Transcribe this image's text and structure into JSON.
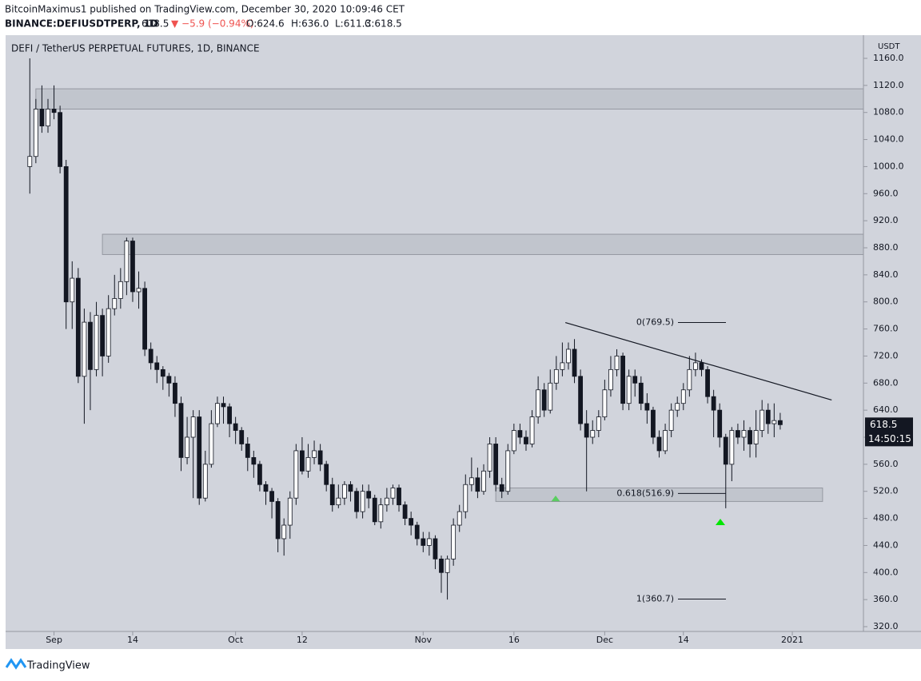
{
  "header": {
    "publisher": "BitcoinMaximus1 published on TradingView.com, December 30, 2020 10:09:46 CET",
    "symbol": "BINANCE:DEFIUSDTPERP, 1D",
    "last": "618.5",
    "change": "▼ −5.9 (−0.94%)",
    "o": "O:624.6",
    "h": "H:636.0",
    "l": "L:611.3",
    "c": "C:618.5"
  },
  "footer": {
    "brand": "TradingView"
  },
  "chart_data": {
    "type": "candlestick",
    "legend_title": "DEFI / TetherUS PERPETUAL FUTURES, 1D, BINANCE",
    "y_unit": "USDT",
    "countdown": "14:50:15",
    "xlim": [
      -4,
      147
    ],
    "xticks": [
      {
        "value": 4,
        "label": "Sep"
      },
      {
        "value": 17,
        "label": "14"
      },
      {
        "value": 34,
        "label": "Oct"
      },
      {
        "value": 45,
        "label": "12"
      },
      {
        "value": 65,
        "label": "Nov"
      },
      {
        "value": 80,
        "label": "16"
      },
      {
        "value": 95,
        "label": "Dec"
      },
      {
        "value": 108,
        "label": "14"
      },
      {
        "value": 126,
        "label": "2021"
      }
    ],
    "ylim": [
      320,
      1160
    ],
    "yticks": [
      {
        "value": 320,
        "label": "320.0"
      },
      {
        "value": 360,
        "label": "360.0"
      },
      {
        "value": 400,
        "label": "400.0"
      },
      {
        "value": 440,
        "label": "440.0"
      },
      {
        "value": 480,
        "label": "480.0"
      },
      {
        "value": 520,
        "label": "520.0"
      },
      {
        "value": 560,
        "label": "560.0"
      },
      {
        "value": 600,
        "label": "600.0"
      },
      {
        "value": 640,
        "label": "640.0"
      },
      {
        "value": 680,
        "label": "680.0"
      },
      {
        "value": 720,
        "label": "720.0"
      },
      {
        "value": 760,
        "label": "760.0"
      },
      {
        "value": 800,
        "label": "800.0"
      },
      {
        "value": 840,
        "label": "840.0"
      },
      {
        "value": 880,
        "label": "880.0"
      },
      {
        "value": 920,
        "label": "920.0"
      },
      {
        "value": 960,
        "label": "960.0"
      },
      {
        "value": 1000,
        "label": "1000.0"
      },
      {
        "value": 1040,
        "label": "1040.0"
      },
      {
        "value": 1080,
        "label": "1080.0"
      },
      {
        "value": 1120,
        "label": "1120.0"
      },
      {
        "value": 1160,
        "label": "1160.0"
      }
    ],
    "up_color": "#ffffff",
    "down_color": "#131722",
    "zones": [
      {
        "from": 1085,
        "to": 1115,
        "start": 1
      },
      {
        "from": 870,
        "to": 900,
        "start": 12
      },
      {
        "from": 505,
        "to": 525,
        "start": 77
      }
    ],
    "fib_levels": [
      {
        "value": 769.5,
        "label": "0(769.5)"
      },
      {
        "value": 516.9,
        "label": "0.618(516.9)"
      },
      {
        "value": 360.7,
        "label": "1(360.7)"
      }
    ],
    "trendline": {
      "x": [
        88.5,
        132.5
      ],
      "y": [
        769.5,
        655
      ]
    },
    "series": [
      {
        "name": "DEFIUSDTPERP",
        "open": [
          1000,
          1015,
          1085,
          1060,
          1085,
          1080,
          1000,
          800,
          835,
          690,
          770,
          700,
          780,
          720,
          790,
          805,
          830,
          890,
          815,
          820,
          730,
          710,
          700,
          690,
          680,
          650,
          570,
          600,
          630,
          510,
          560,
          620,
          650,
          645,
          620,
          610,
          590,
          570,
          560,
          530,
          520,
          505,
          450,
          470,
          510,
          580,
          550,
          570,
          580,
          560,
          530,
          500,
          510,
          530,
          520,
          490,
          520,
          510,
          475,
          500,
          510,
          525,
          500,
          480,
          470,
          450,
          440,
          450,
          420,
          400,
          420,
          470,
          490,
          530,
          540,
          520,
          550,
          590,
          530,
          520,
          580,
          610,
          600,
          590,
          630,
          670,
          640,
          680,
          700,
          710,
          730,
          690,
          620,
          600,
          610,
          630,
          670,
          700,
          720,
          650,
          690,
          680,
          650,
          640,
          600,
          580,
          610,
          640,
          650,
          670,
          700,
          710,
          700,
          660,
          640,
          600,
          560,
          610,
          600,
          610,
          590,
          610,
          640,
          620,
          624.6
        ],
        "high": [
          1160,
          1100,
          1120,
          1100,
          1120,
          1090,
          1010,
          860,
          850,
          790,
          785,
          800,
          790,
          810,
          840,
          850,
          895,
          895,
          845,
          830,
          740,
          720,
          705,
          695,
          690,
          660,
          630,
          640,
          640,
          580,
          640,
          660,
          660,
          650,
          630,
          615,
          600,
          580,
          565,
          535,
          525,
          510,
          480,
          520,
          590,
          600,
          590,
          595,
          590,
          565,
          540,
          530,
          535,
          535,
          525,
          530,
          530,
          515,
          510,
          525,
          530,
          530,
          505,
          490,
          475,
          460,
          460,
          455,
          425,
          425,
          480,
          500,
          545,
          570,
          555,
          560,
          600,
          600,
          540,
          590,
          620,
          620,
          610,
          640,
          690,
          680,
          700,
          720,
          740,
          740,
          745,
          700,
          640,
          625,
          640,
          685,
          720,
          730,
          725,
          700,
          700,
          690,
          665,
          645,
          610,
          620,
          650,
          660,
          680,
          720,
          725,
          715,
          705,
          670,
          650,
          605,
          615,
          620,
          625,
          615,
          640,
          655,
          650,
          650,
          636
        ],
        "low": [
          960,
          1005,
          1050,
          1050,
          1070,
          990,
          760,
          760,
          680,
          620,
          640,
          690,
          690,
          710,
          780,
          790,
          810,
          800,
          790,
          720,
          700,
          680,
          670,
          660,
          630,
          550,
          560,
          510,
          500,
          505,
          555,
          615,
          620,
          600,
          590,
          580,
          550,
          540,
          520,
          500,
          480,
          430,
          425,
          450,
          500,
          545,
          540,
          560,
          550,
          520,
          490,
          495,
          500,
          505,
          480,
          480,
          495,
          470,
          465,
          490,
          500,
          490,
          470,
          455,
          440,
          430,
          425,
          405,
          370,
          360,
          410,
          460,
          480,
          520,
          510,
          515,
          540,
          520,
          510,
          515,
          575,
          590,
          580,
          585,
          620,
          630,
          635,
          670,
          690,
          700,
          680,
          610,
          520,
          590,
          600,
          625,
          660,
          690,
          640,
          640,
          660,
          640,
          620,
          590,
          570,
          575,
          600,
          630,
          640,
          660,
          690,
          690,
          650,
          600,
          585,
          495,
          535,
          590,
          580,
          570,
          570,
          600,
          605,
          600,
          611.3
        ],
        "close": [
          1015,
          1085,
          1060,
          1085,
          1080,
          1000,
          800,
          835,
          690,
          770,
          700,
          780,
          720,
          790,
          805,
          830,
          890,
          815,
          820,
          730,
          710,
          700,
          690,
          680,
          650,
          570,
          600,
          630,
          510,
          560,
          620,
          650,
          645,
          620,
          610,
          590,
          570,
          560,
          530,
          520,
          505,
          450,
          470,
          510,
          580,
          550,
          570,
          580,
          560,
          530,
          500,
          510,
          530,
          520,
          490,
          520,
          510,
          475,
          500,
          510,
          525,
          500,
          480,
          470,
          450,
          440,
          450,
          420,
          400,
          420,
          470,
          490,
          530,
          540,
          520,
          550,
          590,
          530,
          520,
          580,
          610,
          600,
          590,
          630,
          670,
          640,
          680,
          700,
          710,
          730,
          690,
          620,
          600,
          610,
          630,
          670,
          700,
          720,
          650,
          690,
          680,
          650,
          640,
          600,
          580,
          610,
          640,
          650,
          670,
          700,
          710,
          700,
          660,
          640,
          600,
          560,
          610,
          600,
          610,
          590,
          610,
          640,
          620,
          624.6,
          618.5
        ]
      }
    ]
  }
}
